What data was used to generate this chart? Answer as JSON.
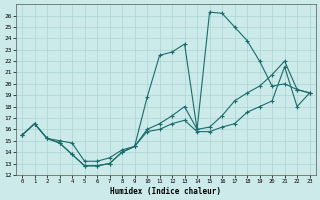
{
  "xlabel": "Humidex (Indice chaleur)",
  "xlim": [
    -0.5,
    23.5
  ],
  "ylim": [
    12,
    27
  ],
  "yticks": [
    12,
    13,
    14,
    15,
    16,
    17,
    18,
    19,
    20,
    21,
    22,
    23,
    24,
    25,
    26
  ],
  "xticks": [
    0,
    1,
    2,
    3,
    4,
    5,
    6,
    7,
    8,
    9,
    10,
    11,
    12,
    13,
    14,
    15,
    16,
    17,
    18,
    19,
    20,
    21,
    22,
    23
  ],
  "bg_color": "#cceaea",
  "grid_color": "#aad4d4",
  "line_color": "#1a6b6b",
  "line1_y": [
    15.5,
    16.5,
    15.2,
    15.0,
    14.8,
    13.2,
    13.2,
    13.5,
    14.2,
    14.5,
    16.0,
    16.5,
    17.2,
    18.0,
    16.0,
    16.2,
    17.2,
    18.5,
    19.2,
    19.8,
    20.8,
    22.0,
    19.5,
    19.2
  ],
  "line2_y": [
    15.5,
    16.5,
    15.2,
    14.8,
    13.8,
    12.8,
    12.8,
    13.0,
    14.0,
    14.5,
    18.8,
    22.5,
    22.8,
    23.5,
    16.0,
    26.3,
    26.2,
    25.0,
    23.8,
    22.0,
    19.8,
    20.0,
    19.5,
    19.2
  ],
  "line3_y": [
    15.5,
    16.5,
    15.2,
    14.8,
    13.8,
    12.8,
    12.8,
    13.0,
    14.0,
    14.5,
    15.8,
    16.0,
    16.5,
    16.8,
    15.8,
    15.8,
    16.2,
    16.5,
    17.5,
    18.0,
    18.5,
    21.5,
    18.0,
    19.2
  ]
}
